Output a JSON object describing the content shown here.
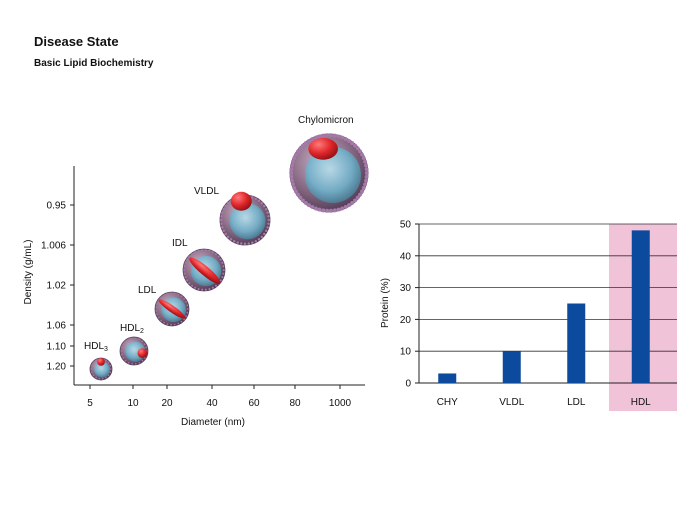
{
  "header": {
    "title": "Disease State",
    "subtitle": "Basic Lipid Biochemistry"
  },
  "colors": {
    "bar": "#0b4a9c",
    "highlight_band": "#f1c3d8",
    "particle_shell": "#8b6c86",
    "particle_core": "#6fb6d0",
    "apoprotein": "#e0262a"
  },
  "chart_data": [
    {
      "type": "scatter",
      "title": "",
      "xlabel": "Diameter (nm)",
      "ylabel": "Density (g/mL)",
      "x_scale": "log",
      "y_scale": "categorical",
      "x_ticks": [
        "5",
        "10",
        "20",
        "40",
        "60",
        "80",
        "1000"
      ],
      "y_ticks": [
        "0.95",
        "1.006",
        "1.02",
        "1.06",
        "1.10",
        "1.20"
      ],
      "points": [
        {
          "label": "HDL",
          "label_sub": "3",
          "diameter": 6,
          "density": 1.2,
          "size_rank": 1
        },
        {
          "label": "HDL",
          "label_sub": "2",
          "diameter": 10,
          "density": 1.13,
          "size_rank": 2
        },
        {
          "label": "LDL",
          "label_sub": "",
          "diameter": 22,
          "density": 1.05,
          "size_rank": 3
        },
        {
          "label": "IDL",
          "label_sub": "",
          "diameter": 35,
          "density": 1.015,
          "size_rank": 4
        },
        {
          "label": "VLDL",
          "label_sub": "",
          "diameter": 55,
          "density": 0.97,
          "size_rank": 5
        },
        {
          "label": "Chylomicron",
          "label_sub": "",
          "diameter": 1000,
          "density": 0.92,
          "size_rank": 6
        }
      ]
    },
    {
      "type": "bar",
      "title": "",
      "xlabel": "",
      "ylabel": "Protein (%)",
      "categories": [
        "CHY",
        "VLDL",
        "LDL",
        "HDL"
      ],
      "values": [
        3,
        10,
        25,
        48
      ],
      "ylim": [
        0,
        50
      ],
      "y_ticks": [
        "0",
        "10",
        "20",
        "30",
        "40",
        "50"
      ],
      "grid": true,
      "highlight_category": "HDL"
    }
  ]
}
